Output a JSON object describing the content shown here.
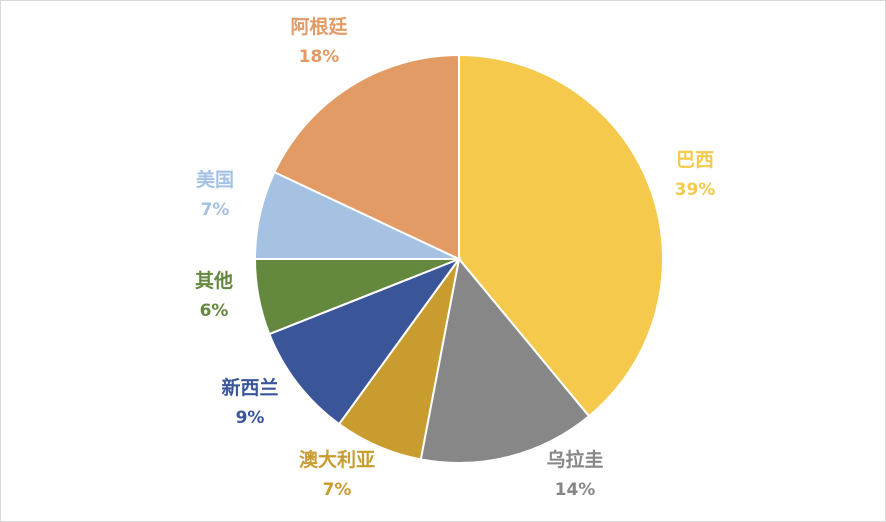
{
  "chart_data": {
    "type": "pie",
    "title": "",
    "slices": [
      {
        "label": "巴西",
        "percent_label": "39%",
        "value": 39,
        "color": "#F5C94C",
        "label_side": "right"
      },
      {
        "label": "乌拉圭",
        "percent_label": "14%",
        "value": 14,
        "color": "#878787",
        "label_side": "bottom-right"
      },
      {
        "label": "澳大利亚",
        "percent_label": "7%",
        "value": 7,
        "color": "#C89C2E",
        "label_side": "bottom"
      },
      {
        "label": "新西兰",
        "percent_label": "9%",
        "value": 9,
        "color": "#3A5699",
        "label_side": "left"
      },
      {
        "label": "其他",
        "percent_label": "6%",
        "value": 6,
        "color": "#63883E",
        "label_side": "left"
      },
      {
        "label": "美国",
        "percent_label": "7%",
        "value": 7,
        "color": "#A5C2E3",
        "label_side": "left"
      },
      {
        "label": "阿根廷",
        "percent_label": "18%",
        "value": 18,
        "color": "#E39B65",
        "label_side": "top"
      }
    ],
    "legend": "none",
    "start_angle": "12 o'clock",
    "direction": "clockwise"
  }
}
